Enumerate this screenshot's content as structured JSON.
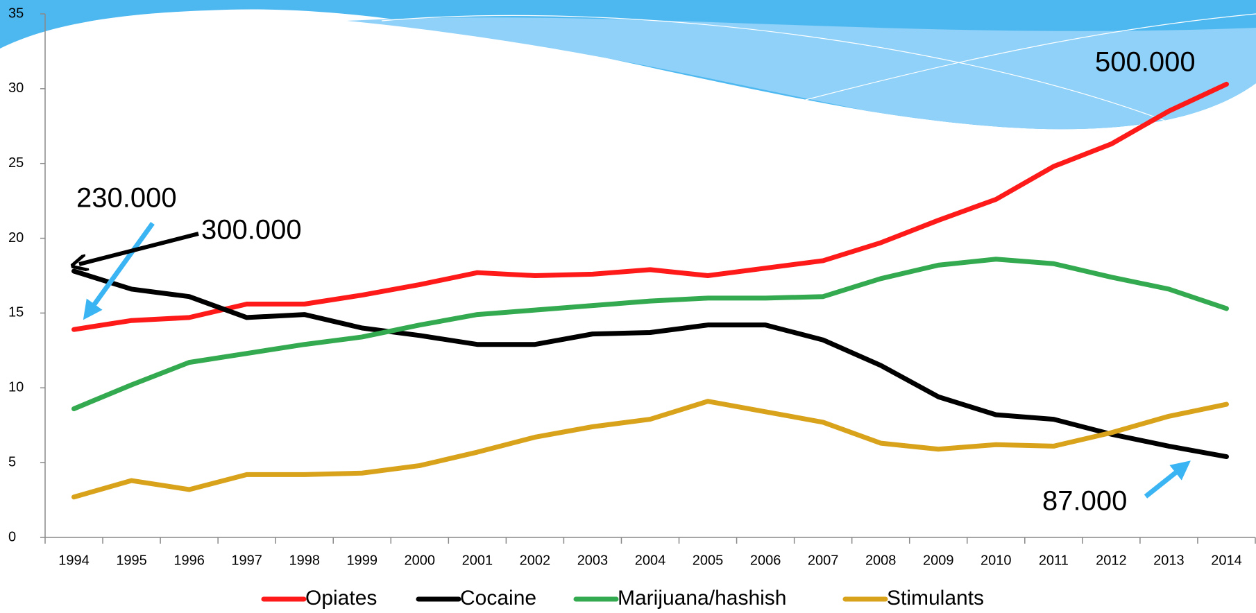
{
  "chart_data": {
    "type": "line",
    "categories": [
      "1994",
      "1995",
      "1996",
      "1997",
      "1998",
      "1999",
      "2000",
      "2001",
      "2002",
      "2003",
      "2004",
      "2005",
      "2006",
      "2007",
      "2008",
      "2009",
      "2010",
      "2011",
      "2012",
      "2013",
      "2014"
    ],
    "series": [
      {
        "name": "Opiates",
        "color": "#ff1a1a",
        "values": [
          13.9,
          14.5,
          14.7,
          15.6,
          15.6,
          16.2,
          16.9,
          17.7,
          17.5,
          17.6,
          17.9,
          17.5,
          18.0,
          18.5,
          19.7,
          21.2,
          22.6,
          24.8,
          26.3,
          28.5,
          30.3
        ]
      },
      {
        "name": "Cocaine",
        "color": "#000000",
        "values": [
          17.8,
          16.6,
          16.1,
          14.7,
          14.9,
          14.0,
          13.5,
          12.9,
          12.9,
          13.6,
          13.7,
          14.2,
          14.2,
          13.2,
          11.5,
          9.4,
          8.2,
          7.9,
          6.9,
          6.1,
          5.4
        ]
      },
      {
        "name": "Marijuana/hashish",
        "color": "#33aa4f",
        "values": [
          8.6,
          10.2,
          11.7,
          12.3,
          12.9,
          13.4,
          14.2,
          14.9,
          15.2,
          15.5,
          15.8,
          16.0,
          16.0,
          16.1,
          17.3,
          18.2,
          18.6,
          18.3,
          17.4,
          16.6,
          15.3
        ]
      },
      {
        "name": "Stimulants",
        "color": "#d9a21b",
        "values": [
          2.7,
          3.8,
          3.2,
          4.2,
          4.2,
          4.3,
          4.8,
          5.7,
          6.7,
          7.4,
          7.9,
          9.1,
          8.4,
          7.7,
          6.3,
          5.9,
          6.2,
          6.1,
          7.0,
          8.1,
          8.9
        ]
      }
    ],
    "ylim": [
      0,
      35
    ],
    "yticks": [
      0,
      5,
      10,
      15,
      20,
      25,
      30,
      35
    ],
    "annotations": [
      "230.000",
      "300.000",
      "500.000",
      "87.000"
    ]
  }
}
